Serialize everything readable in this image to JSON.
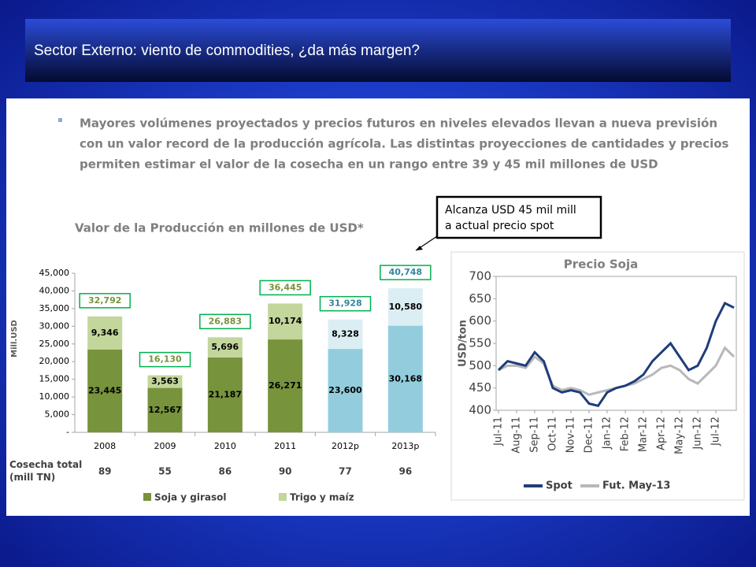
{
  "header": {
    "title": "Sector Externo: viento de commodities, ¿da más margen?"
  },
  "bullet": {
    "lines": [
      "Mayores volúmenes proyectados y precios futuros en niveles elevados llevan a nueva previsión",
      "con un valor record de la producción agrícola. Las distintas proyecciones de cantidades y precios",
      "permiten estimar el valor de la cosecha en un rango entre 39 y 45 mil millones de USD"
    ]
  },
  "callout": {
    "lines": [
      "Alcanza USD 45 mil mill",
      "a actual precio spot"
    ]
  },
  "chart_data": [
    {
      "type": "bar",
      "stacked": true,
      "title": "Valor de la Producción en millones de USD*",
      "y_label": "Mill.USD",
      "categories": [
        "2008",
        "2009",
        "2010",
        "2011",
        "2012p",
        "2013p"
      ],
      "series": [
        {
          "name": "Soja y girasol",
          "color": "#77933c",
          "colors": [
            "#77933c",
            "#77933c",
            "#77933c",
            "#77933c",
            "#93cddd",
            "#93cddd"
          ],
          "values": [
            23445,
            12567,
            21187,
            26271,
            23600,
            30168
          ],
          "value_labels": [
            "23,445",
            "12,567",
            "21,187",
            "26,271",
            "23,600",
            "30,168"
          ]
        },
        {
          "name": "Trigo y maíz",
          "color": "#c3d69b",
          "colors": [
            "#c3d69b",
            "#c3d69b",
            "#c3d69b",
            "#c3d69b",
            "#dbeef4",
            "#dbeef4"
          ],
          "values": [
            9346,
            3563,
            5696,
            10174,
            8328,
            10580
          ],
          "value_labels": [
            "9,346",
            "3,563",
            "5,696",
            "10,174",
            "8,328",
            "10,580"
          ]
        }
      ],
      "totals": {
        "values": [
          32792,
          16130,
          26883,
          36445,
          31928,
          40748
        ],
        "value_labels": [
          "32,792",
          "16,130",
          "26,883",
          "36,445",
          "31,928",
          "40,748"
        ],
        "colors": [
          "#77933c",
          "#77933c",
          "#77933c",
          "#77933c",
          "#31859c",
          "#31859c"
        ]
      },
      "harvest": {
        "label": "Cosecha total\n(mill TN)",
        "values": [
          89,
          55,
          86,
          90,
          77,
          96
        ]
      },
      "ylim": [
        0,
        45000
      ],
      "yticks": [
        {
          "value": 0,
          "label": "-"
        },
        {
          "value": 5000,
          "label": "5,000"
        },
        {
          "value": 10000,
          "label": "10,000"
        },
        {
          "value": 15000,
          "label": "15,000"
        },
        {
          "value": 20000,
          "label": "20,000"
        },
        {
          "value": 25000,
          "label": "25,000"
        },
        {
          "value": 30000,
          "label": "30,000"
        },
        {
          "value": 35000,
          "label": "35,000"
        },
        {
          "value": 40000,
          "label": "40,000"
        },
        {
          "value": 45000,
          "label": "45,000"
        }
      ],
      "grid": false
    },
    {
      "type": "line",
      "title": "Precio Soja",
      "y_label": "USD/ton",
      "categories": [
        "Jul-11",
        null,
        "Aug-11",
        null,
        "Sep-11",
        null,
        "Oct-11",
        null,
        "Nov-11",
        null,
        "Dec-11",
        null,
        "Jan-12",
        null,
        "Feb-12",
        null,
        "Mar-12",
        null,
        "Apr-12",
        null,
        "May-12",
        null,
        "Jun-12",
        null,
        "Jul-12",
        null,
        null
      ],
      "series": [
        {
          "name": "Spot",
          "color": "#1f3d7a",
          "values": [
            490,
            510,
            505,
            500,
            530,
            510,
            450,
            440,
            445,
            440,
            415,
            410,
            440,
            450,
            455,
            465,
            480,
            510,
            530,
            550,
            520,
            490,
            500,
            540,
            600,
            640,
            630
          ]
        },
        {
          "name": "Fut. May-13",
          "color": "#b8b8b8",
          "values": [
            490,
            500,
            500,
            495,
            520,
            505,
            455,
            445,
            450,
            445,
            435,
            440,
            445,
            450,
            455,
            460,
            470,
            480,
            495,
            500,
            490,
            470,
            460,
            480,
            500,
            540,
            520
          ]
        }
      ],
      "ylim": [
        400,
        700
      ],
      "yticks": [
        400,
        450,
        500,
        550,
        600,
        650,
        700
      ],
      "grid": false,
      "legend": "bottom"
    }
  ]
}
